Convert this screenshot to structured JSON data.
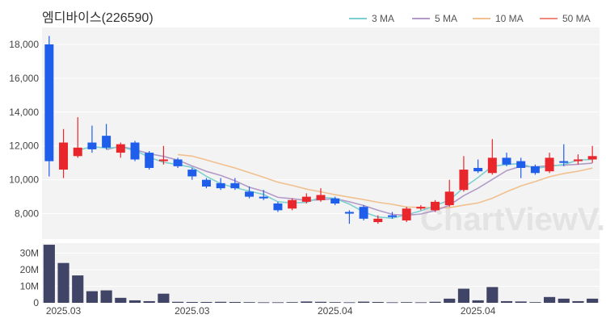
{
  "chart_data": {
    "type": "candlestick",
    "title": "엠디바이스(226590)",
    "watermark": "ChartViewV.com",
    "legend": [
      {
        "name": "3 MA",
        "color": "#7ecfcf"
      },
      {
        "name": "5 MA",
        "color": "#b39ac7"
      },
      {
        "name": "10 MA",
        "color": "#f0c08e"
      },
      {
        "name": "50 MA",
        "color": "#f08a7a"
      }
    ],
    "colors": {
      "up": "#e8262b",
      "down": "#1f5eea",
      "volume": "#404466",
      "plot_bg": "#f3f3f3"
    },
    "price_axis": {
      "ticks": [
        "8,000",
        "10,000",
        "12,000",
        "14,000",
        "16,000",
        "18,000"
      ],
      "min": 6500,
      "max": 19000
    },
    "volume_axis": {
      "ticks": [
        "0",
        "10M",
        "20M",
        "30M"
      ],
      "min": 0,
      "max": 36000000
    },
    "x_tick_labels": [
      "2025.03",
      "2025.03",
      "2025.04",
      "2025.04"
    ],
    "candles": [
      {
        "o": 18000,
        "h": 18500,
        "l": 10200,
        "c": 11100,
        "v": 35000000
      },
      {
        "o": 10600,
        "h": 13000,
        "l": 10100,
        "c": 12200,
        "v": 24000000
      },
      {
        "o": 11400,
        "h": 13700,
        "l": 11300,
        "c": 11900,
        "v": 16500000
      },
      {
        "o": 12200,
        "h": 13200,
        "l": 11600,
        "c": 11800,
        "v": 7000000
      },
      {
        "o": 12600,
        "h": 13300,
        "l": 11800,
        "c": 11900,
        "v": 7500000
      },
      {
        "o": 11600,
        "h": 12200,
        "l": 11300,
        "c": 12100,
        "v": 3000000
      },
      {
        "o": 12200,
        "h": 12300,
        "l": 11100,
        "c": 11200,
        "v": 1500000
      },
      {
        "o": 11600,
        "h": 11700,
        "l": 10600,
        "c": 10700,
        "v": 1000000
      },
      {
        "o": 11100,
        "h": 12000,
        "l": 10900,
        "c": 11200,
        "v": 5500000
      },
      {
        "o": 11200,
        "h": 11300,
        "l": 10700,
        "c": 10800,
        "v": 600000
      },
      {
        "o": 10600,
        "h": 10700,
        "l": 10000,
        "c": 10200,
        "v": 500000
      },
      {
        "o": 10000,
        "h": 10100,
        "l": 9500,
        "c": 9600,
        "v": 500000
      },
      {
        "o": 9800,
        "h": 10100,
        "l": 9400,
        "c": 9500,
        "v": 600000
      },
      {
        "o": 9800,
        "h": 10100,
        "l": 9400,
        "c": 9500,
        "v": 500000
      },
      {
        "o": 9300,
        "h": 9600,
        "l": 8900,
        "c": 9000,
        "v": 400000
      },
      {
        "o": 9000,
        "h": 9400,
        "l": 8800,
        "c": 8900,
        "v": 300000
      },
      {
        "o": 8600,
        "h": 8700,
        "l": 8100,
        "c": 8200,
        "v": 300000
      },
      {
        "o": 8300,
        "h": 8900,
        "l": 8200,
        "c": 8800,
        "v": 400000
      },
      {
        "o": 8700,
        "h": 9200,
        "l": 8600,
        "c": 9000,
        "v": 800000
      },
      {
        "o": 8800,
        "h": 9500,
        "l": 8700,
        "c": 9100,
        "v": 600000
      },
      {
        "o": 8900,
        "h": 9000,
        "l": 8500,
        "c": 8600,
        "v": 400000
      },
      {
        "o": 8100,
        "h": 8200,
        "l": 7400,
        "c": 8000,
        "v": 300000
      },
      {
        "o": 8400,
        "h": 8500,
        "l": 7600,
        "c": 7700,
        "v": 700000
      },
      {
        "o": 7500,
        "h": 7900,
        "l": 7400,
        "c": 7700,
        "v": 500000
      },
      {
        "o": 7900,
        "h": 8100,
        "l": 7700,
        "c": 7800,
        "v": 300000
      },
      {
        "o": 7600,
        "h": 8400,
        "l": 7500,
        "c": 8300,
        "v": 400000
      },
      {
        "o": 8300,
        "h": 8500,
        "l": 8200,
        "c": 8400,
        "v": 300000
      },
      {
        "o": 8200,
        "h": 8800,
        "l": 8100,
        "c": 8700,
        "v": 600000
      },
      {
        "o": 8500,
        "h": 10000,
        "l": 8400,
        "c": 9300,
        "v": 2500000
      },
      {
        "o": 9400,
        "h": 11400,
        "l": 9300,
        "c": 10600,
        "v": 8500000
      },
      {
        "o": 10700,
        "h": 11200,
        "l": 10400,
        "c": 10500,
        "v": 1500000
      },
      {
        "o": 10400,
        "h": 12400,
        "l": 10300,
        "c": 11300,
        "v": 9500000
      },
      {
        "o": 11300,
        "h": 11600,
        "l": 10800,
        "c": 10900,
        "v": 1000000
      },
      {
        "o": 11100,
        "h": 11300,
        "l": 10100,
        "c": 10700,
        "v": 800000
      },
      {
        "o": 10800,
        "h": 10900,
        "l": 10300,
        "c": 10400,
        "v": 400000
      },
      {
        "o": 10500,
        "h": 11600,
        "l": 10400,
        "c": 11300,
        "v": 3500000
      },
      {
        "o": 11100,
        "h": 12100,
        "l": 10800,
        "c": 11000,
        "v": 2500000
      },
      {
        "o": 11100,
        "h": 11500,
        "l": 10900,
        "c": 11200,
        "v": 1000000
      },
      {
        "o": 11200,
        "h": 12000,
        "l": 11000,
        "c": 11400,
        "v": 2500000
      }
    ],
    "ma3": [
      null,
      null,
      11733,
      11967,
      11867,
      11933,
      11733,
      11333,
      11033,
      10900,
      10733,
      10200,
      9767,
      9533,
      9333,
      9133,
      8700,
      8633,
      8667,
      8967,
      8900,
      8567,
      8100,
      7800,
      7733,
      7933,
      8167,
      8467,
      8800,
      9533,
      10133,
      10800,
      10900,
      10967,
      10667,
      10800,
      10900,
      11167,
      11200
    ],
    "ma5": [
      null,
      null,
      null,
      null,
      11780,
      11980,
      11780,
      11540,
      11380,
      11160,
      10820,
      10500,
      10260,
      9940,
      9560,
      9320,
      8960,
      8880,
      8780,
      8820,
      8880,
      8700,
      8480,
      8200,
      7960,
      7900,
      7980,
      8180,
      8500,
      9060,
      9500,
      10020,
      10540,
      10800,
      10760,
      10840,
      10860,
      10920,
      10980
    ],
    "ma10": [
      null,
      null,
      null,
      null,
      null,
      null,
      null,
      null,
      null,
      11490,
      11400,
      11170,
      10930,
      10700,
      10420,
      10150,
      9860,
      9670,
      9450,
      9290,
      9120,
      8970,
      8830,
      8670,
      8550,
      8390,
      8370,
      8340,
      8350,
      8500,
      8630,
      8910,
      9290,
      9640,
      9890,
      10180,
      10370,
      10510,
      10690
    ]
  }
}
